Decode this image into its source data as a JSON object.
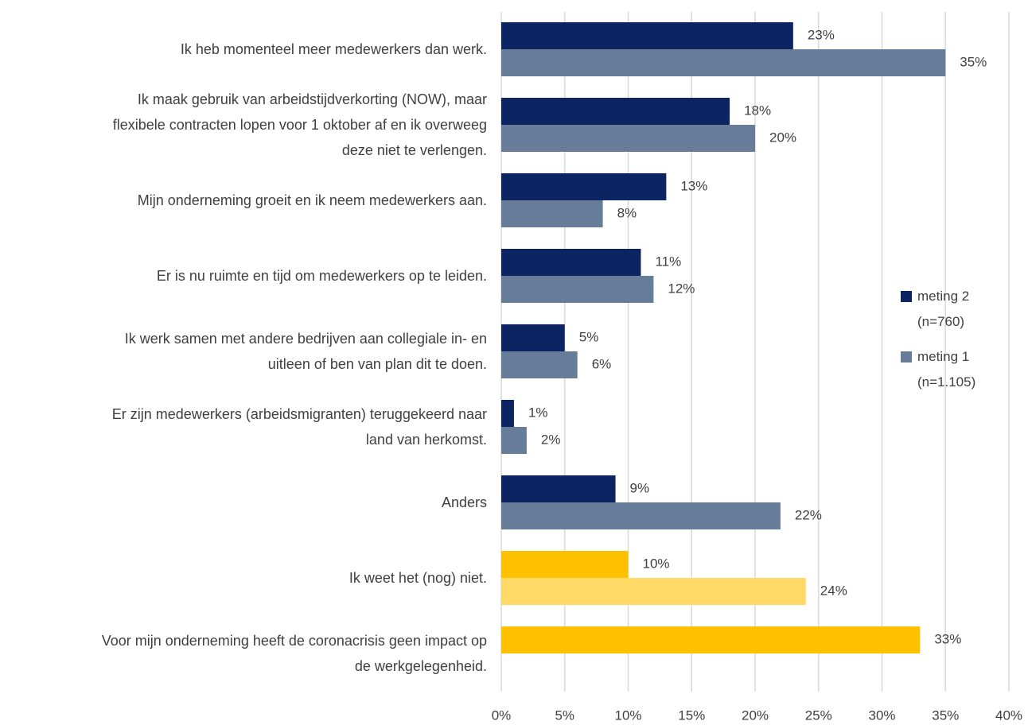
{
  "chart_data": {
    "type": "barh",
    "categories": [
      "Ik heb momenteel meer medewerkers dan werk.",
      "Ik maak gebruik van arbeidstijdverkorting (NOW), maar\nflexibele contracten lopen voor 1 oktober af en ik overweeg\ndeze niet te verlengen.",
      "Mijn onderneming groeit en ik neem medewerkers aan.",
      "Er is nu ruimte en tijd om medewerkers op te leiden.",
      "Ik werk samen met andere bedrijven aan collegiale in- en\nuitleen of ben van plan dit te doen.",
      "Er zijn medewerkers (arbeidsmigranten) teruggekeerd naar\nland van herkomst.",
      "Anders",
      "Ik weet het (nog) niet.",
      "Voor mijn onderneming heeft de coronacrisis geen impact op\nde werkgelegenheid."
    ],
    "series": [
      {
        "name": "meting 2 (n=760)",
        "color": "#0c2461",
        "colors": [
          "#0c2461",
          "#0c2461",
          "#0c2461",
          "#0c2461",
          "#0c2461",
          "#0c2461",
          "#0c2461",
          "#ffc000",
          "#ffc000"
        ],
        "values": [
          23,
          18,
          13,
          11,
          5,
          1,
          9,
          10,
          33
        ],
        "value_labels": [
          "23%",
          "18%",
          "13%",
          "11%",
          "5%",
          "1%",
          "9%",
          "10%",
          "33%"
        ]
      },
      {
        "name": "meting 1 (n=1.105)",
        "color": "#667c99",
        "colors": [
          "#667c99",
          "#667c99",
          "#667c99",
          "#667c99",
          "#667c99",
          "#667c99",
          "#667c99",
          "#ffd966",
          "#ffd966"
        ],
        "values": [
          35,
          20,
          8,
          12,
          6,
          2,
          22,
          24,
          null
        ],
        "value_labels": [
          "35%",
          "20%",
          "8%",
          "12%",
          "6%",
          "2%",
          "22%",
          "24%",
          null
        ]
      }
    ],
    "xlim": [
      0,
      40
    ],
    "xticks": [
      {
        "value": 0,
        "label": "0%"
      },
      {
        "value": 5,
        "label": "5%"
      },
      {
        "value": 10,
        "label": "10%"
      },
      {
        "value": 15,
        "label": "15%"
      },
      {
        "value": 20,
        "label": "20%"
      },
      {
        "value": 25,
        "label": "25%"
      },
      {
        "value": 30,
        "label": "30%"
      },
      {
        "value": 35,
        "label": "35%"
      },
      {
        "value": 40,
        "label": "40%"
      }
    ],
    "grid": true,
    "legend": "right"
  }
}
